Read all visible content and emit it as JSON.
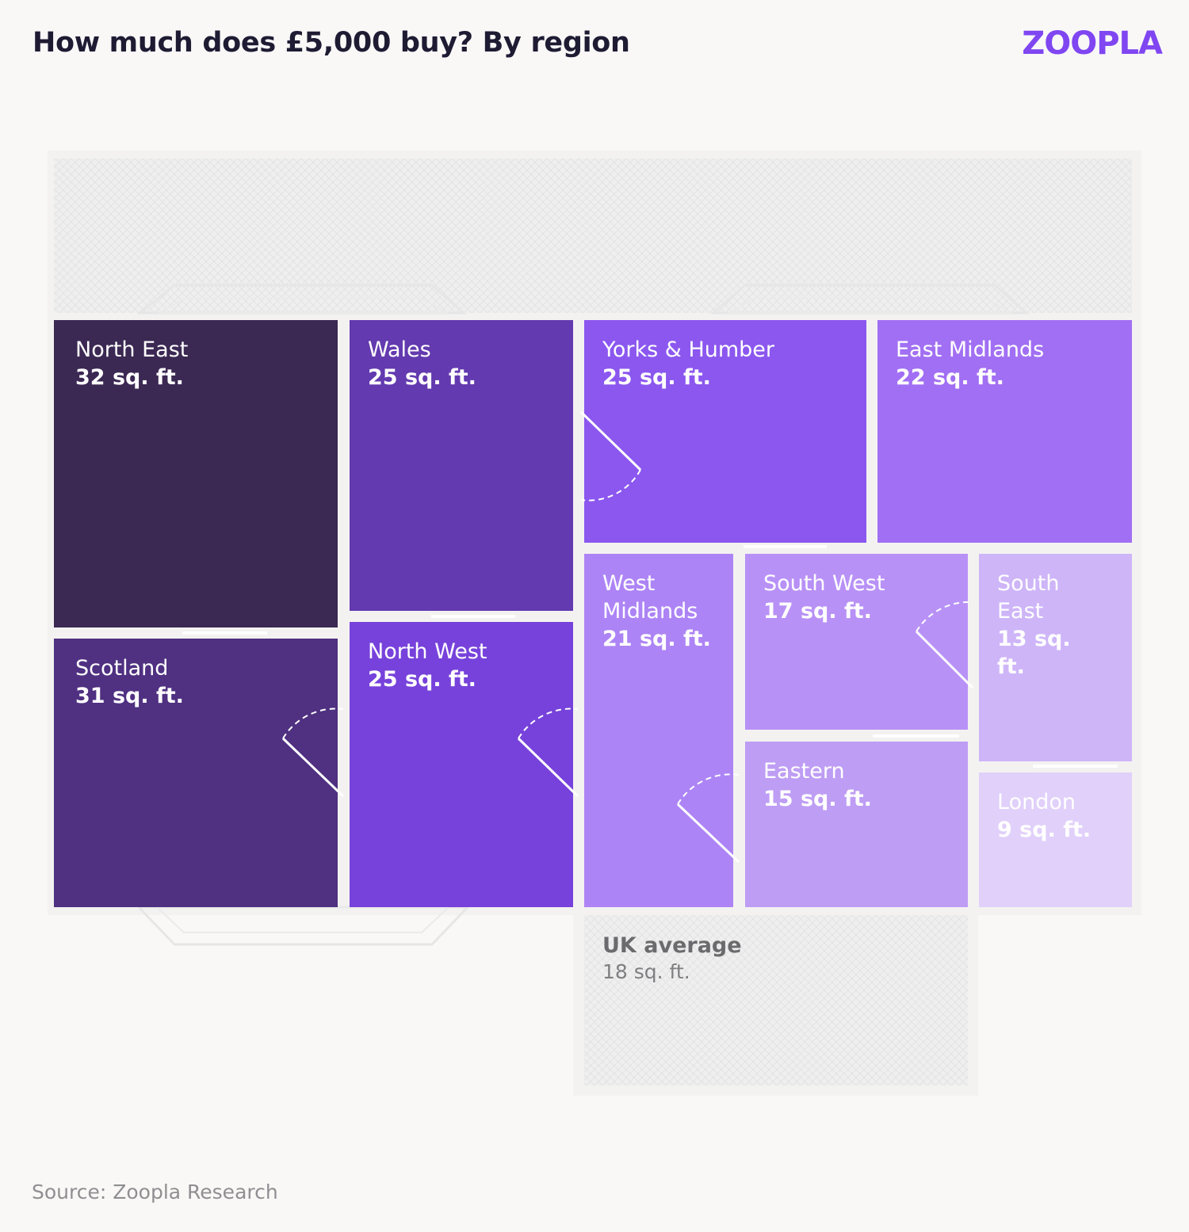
{
  "header": {
    "title": "How much does £5,000 buy? By region",
    "brand": "ZOOPLA"
  },
  "footer": {
    "source": "Source: Zoopla Research"
  },
  "colors": {
    "background": "#f9f8f7",
    "brand": "#8046f1",
    "north_east": "#3b2853",
    "scotland": "#4f3081",
    "wales": "#633aaf",
    "north_west": "#7742db",
    "yorks_humber": "#8b57ef",
    "east_midlands": "#a16ff3",
    "west_midlands": "#ad84f5",
    "south_west": "#b891f6",
    "eastern": "#be9df4",
    "south_east": "#ceb5f8",
    "london": "#e0d0fa"
  },
  "chart_data": {
    "type": "treemap-floorplan",
    "title": "How much does £5,000 buy? By region",
    "unit": "sq. ft.",
    "regions": [
      {
        "name": "North East",
        "value": 32,
        "label": "32 sq. ft."
      },
      {
        "name": "Scotland",
        "value": 31,
        "label": "31 sq. ft."
      },
      {
        "name": "Wales",
        "value": 25,
        "label": "25 sq. ft."
      },
      {
        "name": "North West",
        "value": 25,
        "label": "25 sq. ft."
      },
      {
        "name": "Yorks & Humber",
        "value": 25,
        "label": "25 sq. ft."
      },
      {
        "name": "East Midlands",
        "value": 22,
        "label": "22 sq. ft."
      },
      {
        "name": "West Midlands",
        "value": 21,
        "label": "21 sq. ft."
      },
      {
        "name": "South West",
        "value": 17,
        "label": "17 sq. ft."
      },
      {
        "name": "Eastern",
        "value": 15,
        "label": "15 sq. ft."
      },
      {
        "name": "South East",
        "value": 13,
        "label": "13 sq. ft."
      },
      {
        "name": "London",
        "value": 9,
        "label": "9 sq. ft."
      }
    ],
    "uk_average": {
      "name": "UK average",
      "value": 18,
      "label": "18 sq. ft."
    },
    "source": "Source: Zoopla Research"
  }
}
